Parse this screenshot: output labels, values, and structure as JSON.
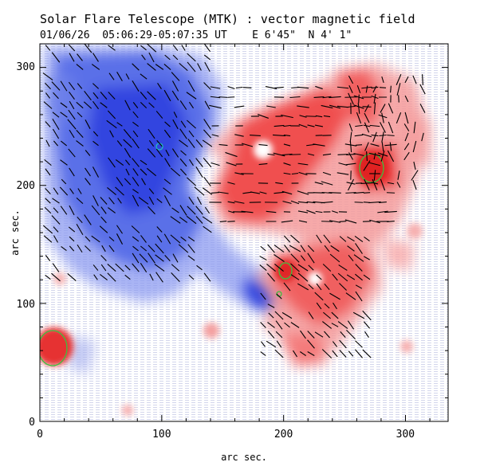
{
  "figure": {
    "title": "Solar Flare Telescope (MTK) : vector magnetic field",
    "subtitle": "01/06/26  05:06:29-05:07:35 UT    E 6'45\"  N 4' 1\"",
    "xlabel": "arc sec.",
    "ylabel": "arc sec.",
    "x_ticks": [
      "0",
      "100",
      "200",
      "300"
    ],
    "y_ticks": [
      "0",
      "100",
      "200",
      "300"
    ],
    "xlim": [
      0,
      335
    ],
    "ylim": [
      0,
      320
    ]
  },
  "colors": {
    "negative_polarity": "#3a4de6",
    "positive_polarity": "#ef3a3a",
    "vector_arrows": "#000000",
    "contour_green": "#3fbf3f",
    "contour_cyan": "#20c0c0"
  }
}
